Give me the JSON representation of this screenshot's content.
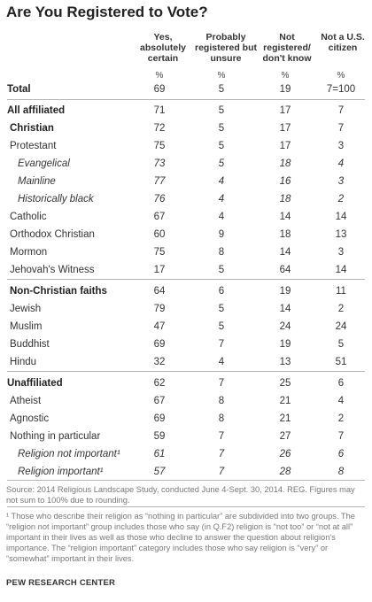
{
  "title": "Are You Registered to Vote?",
  "columns": [
    "Yes,\nabsolutely\ncertain",
    "Probably\nregistered but\nunsure",
    "Not\nregistered/\ndon't know",
    "Not a U.S.\ncitizen"
  ],
  "unit": "%",
  "rows": [
    {
      "label": "Total",
      "values": [
        "69",
        "5",
        "19",
        "7=100"
      ],
      "style": "bold",
      "indent": 0
    },
    {
      "label": "All affiliated",
      "values": [
        "71",
        "5",
        "17",
        "7"
      ],
      "style": "bold",
      "indent": 0
    },
    {
      "label": "Christian",
      "values": [
        "72",
        "5",
        "17",
        "7"
      ],
      "style": "bold",
      "indent": 1
    },
    {
      "label": "Protestant",
      "values": [
        "75",
        "5",
        "17",
        "3"
      ],
      "style": "normal",
      "indent": 1
    },
    {
      "label": "Evangelical",
      "values": [
        "73",
        "5",
        "18",
        "4"
      ],
      "style": "italic",
      "indent": 2
    },
    {
      "label": "Mainline",
      "values": [
        "77",
        "4",
        "16",
        "3"
      ],
      "style": "italic",
      "indent": 2
    },
    {
      "label": "Historically black",
      "values": [
        "76",
        "4",
        "18",
        "2"
      ],
      "style": "italic",
      "indent": 2
    },
    {
      "label": "Catholic",
      "values": [
        "67",
        "4",
        "14",
        "14"
      ],
      "style": "normal",
      "indent": 1
    },
    {
      "label": "Orthodox Christian",
      "values": [
        "60",
        "9",
        "18",
        "13"
      ],
      "style": "normal",
      "indent": 1
    },
    {
      "label": "Mormon",
      "values": [
        "75",
        "8",
        "14",
        "3"
      ],
      "style": "normal",
      "indent": 1
    },
    {
      "label": "Jehovah's Witness",
      "values": [
        "17",
        "5",
        "64",
        "14"
      ],
      "style": "normal",
      "indent": 1
    },
    {
      "label": "Non-Christian faiths",
      "values": [
        "64",
        "6",
        "19",
        "11"
      ],
      "style": "bold",
      "indent": 1
    },
    {
      "label": "Jewish",
      "values": [
        "79",
        "5",
        "14",
        "2"
      ],
      "style": "normal",
      "indent": 1
    },
    {
      "label": "Muslim",
      "values": [
        "47",
        "5",
        "24",
        "24"
      ],
      "style": "normal",
      "indent": 1
    },
    {
      "label": "Buddhist",
      "values": [
        "69",
        "7",
        "19",
        "5"
      ],
      "style": "normal",
      "indent": 1
    },
    {
      "label": "Hindu",
      "values": [
        "32",
        "4",
        "13",
        "51"
      ],
      "style": "normal",
      "indent": 1
    },
    {
      "label": "Unaffiliated",
      "values": [
        "62",
        "7",
        "25",
        "6"
      ],
      "style": "bold",
      "indent": 0
    },
    {
      "label": "Atheist",
      "values": [
        "67",
        "8",
        "21",
        "4"
      ],
      "style": "normal",
      "indent": 1
    },
    {
      "label": "Agnostic",
      "values": [
        "69",
        "8",
        "21",
        "2"
      ],
      "style": "normal",
      "indent": 1
    },
    {
      "label": "Nothing in particular",
      "values": [
        "59",
        "7",
        "27",
        "7"
      ],
      "style": "normal",
      "indent": 1
    },
    {
      "label": "Religion not important¹",
      "values": [
        "61",
        "7",
        "26",
        "6"
      ],
      "style": "italic",
      "indent": 2
    },
    {
      "label": "Religion important¹",
      "values": [
        "57",
        "7",
        "28",
        "8"
      ],
      "style": "italic",
      "indent": 2
    }
  ],
  "source": "Source: 2014 Religious Landscape Study, conducted June 4-Sept. 30, 2014. REG. Figures may not sum to 100% due to rounding.",
  "footnote": "¹ Those who describe their religion as “nothing in particular” are subdivided into two groups. The “religion not important” group includes those who say (in Q.F2) religion is “not too” or “not at all” important in their lives as well as those who decline to answer the question about religion's importance. The “religion important” category includes those who say religion is “very” or “somewhat” important in their lives.",
  "brand": "PEW RESEARCH CENTER"
}
